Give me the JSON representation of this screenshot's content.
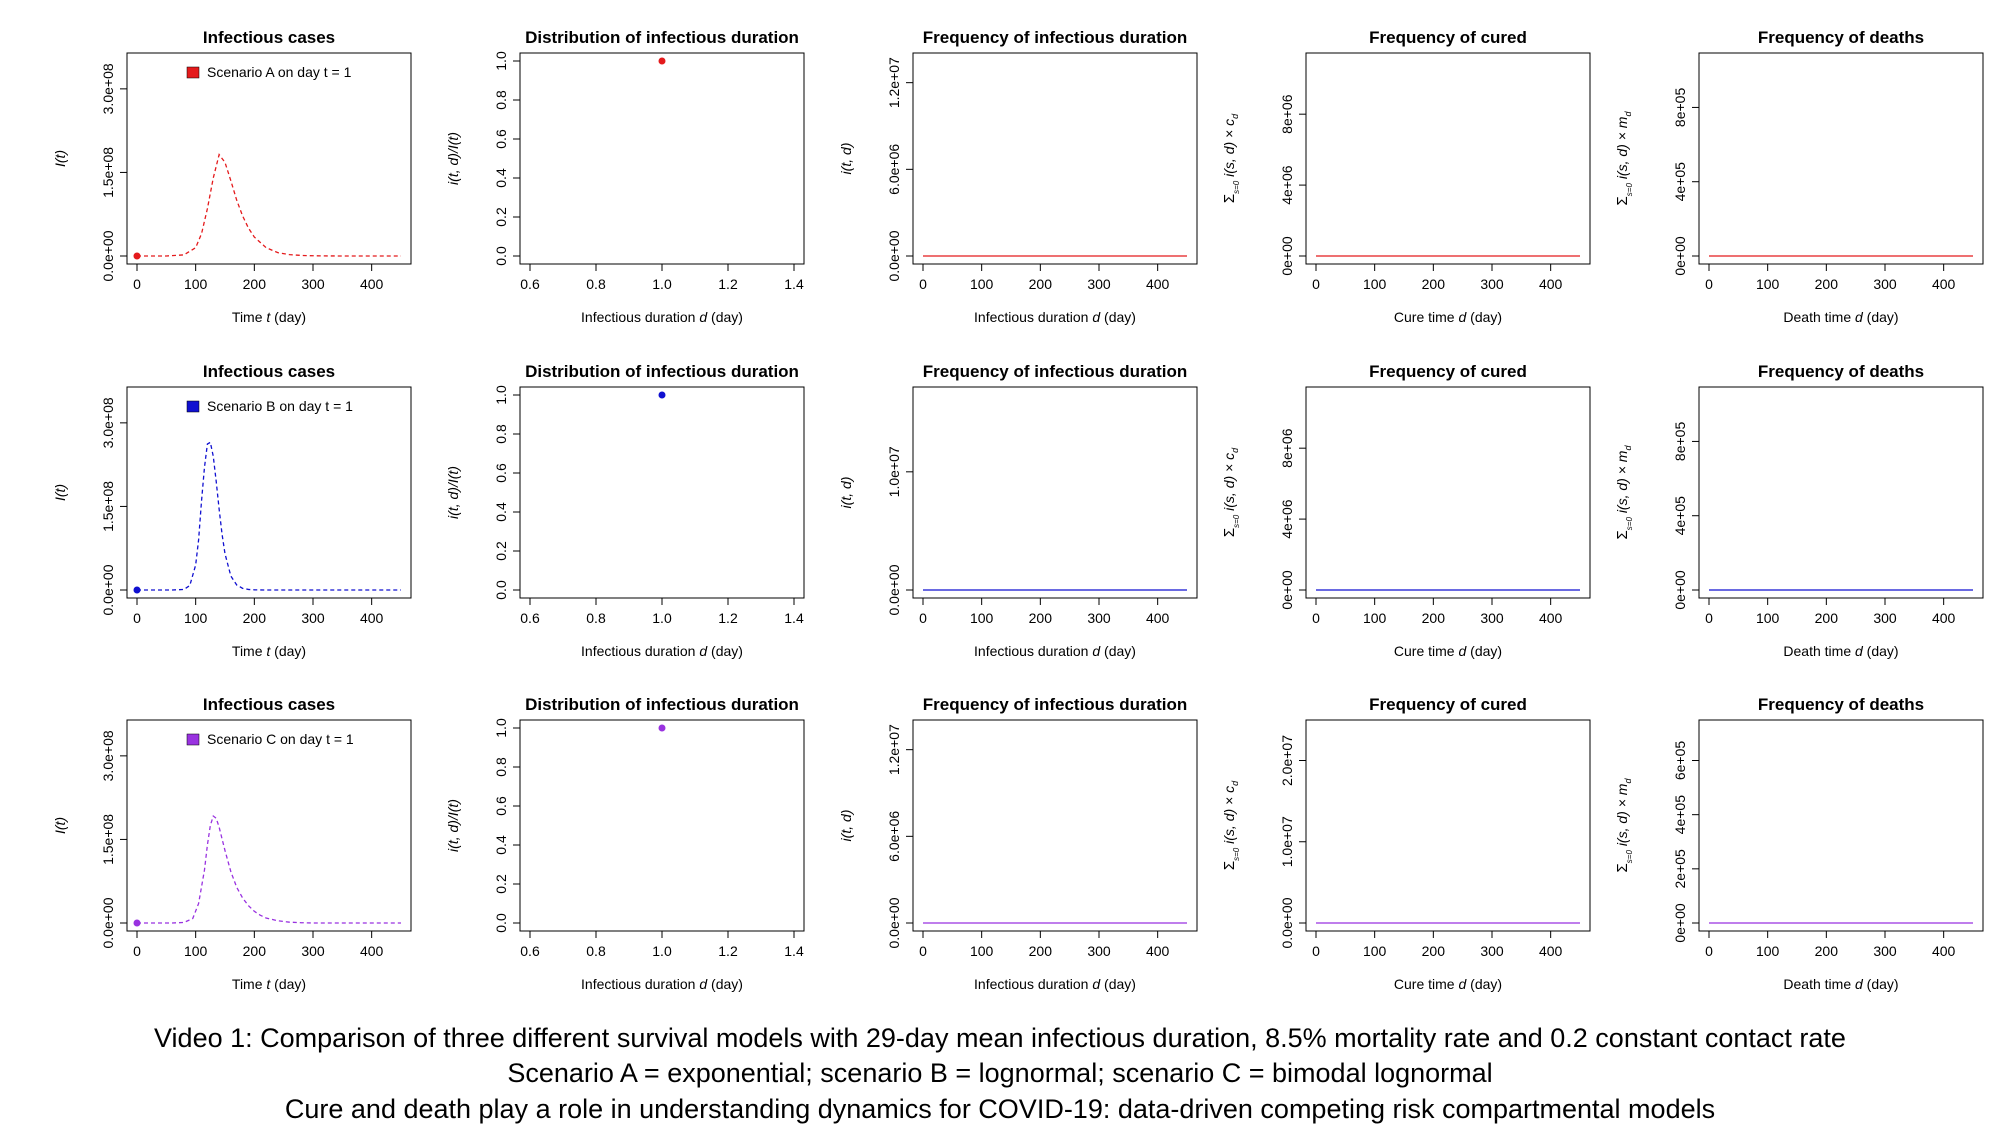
{
  "captions": {
    "line1": "Video 1: Comparison of three different survival models with 29-day mean infectious duration, 8.5% mortality rate and 0.2 constant contact rate",
    "line2": "Scenario A = exponential; scenario B = lognormal; scenario C = bimodal lognormal",
    "line3": "Cure and death play a role in understanding dynamics for COVID-19: data-driven competing risk compartmental models"
  },
  "colors": {
    "A": "#e41a1c",
    "B": "#1010d0",
    "C": "#9932e0"
  },
  "chart_data": [
    {
      "id": "A-infectious",
      "type": "line",
      "title": "Infectious cases",
      "xlabel": "Time t (day)",
      "ylabel": "I(t)",
      "xlim": [
        0,
        450
      ],
      "ylim": [
        0,
        350000000
      ],
      "xticks": [
        "0",
        "100",
        "200",
        "300",
        "400"
      ],
      "xtick_values": [
        0,
        100,
        200,
        300,
        400
      ],
      "yticks": [
        "0.0e+00",
        "1.5e+08",
        "3.0e+08"
      ],
      "ytick_values": [
        0,
        150000000,
        300000000
      ],
      "legend": "Scenario A on day t =  1",
      "legend_placement": "top-left",
      "series": [
        {
          "name": "Scenario A",
          "color": "#e41a1c",
          "style": "dashed",
          "x": [
            0,
            50,
            80,
            100,
            110,
            120,
            130,
            140,
            150,
            160,
            170,
            180,
            190,
            200,
            220,
            240,
            260,
            280,
            300,
            330,
            360,
            400,
            450
          ],
          "y": [
            0,
            0,
            2000000,
            15000000,
            40000000,
            85000000,
            140000000,
            182000000,
            168000000,
            135000000,
            100000000,
            72000000,
            50000000,
            34000000,
            15000000,
            6000000,
            2500000,
            1000000,
            400000,
            100000,
            0,
            0,
            0
          ]
        }
      ],
      "markers": [
        {
          "x": 0,
          "y": 0,
          "color": "#e41a1c"
        }
      ]
    },
    {
      "id": "A-distribution",
      "type": "scatter",
      "title": "Distribution of infectious duration",
      "xlabel": "Infectious duration d (day)",
      "ylabel": "i(t, d)/I(t)",
      "xlim": [
        0.6,
        1.4
      ],
      "ylim": [
        0,
        1
      ],
      "xticks": [
        "0.6",
        "0.8",
        "1.0",
        "1.2",
        "1.4"
      ],
      "xtick_values": [
        0.6,
        0.8,
        1.0,
        1.2,
        1.4
      ],
      "yticks": [
        "0.0",
        "0.2",
        "0.4",
        "0.6",
        "0.8",
        "1.0"
      ],
      "ytick_values": [
        0,
        0.2,
        0.4,
        0.6,
        0.8,
        1.0
      ],
      "markers": [
        {
          "x": 1.0,
          "y": 1.0,
          "color": "#e41a1c"
        }
      ]
    },
    {
      "id": "A-frequency-duration",
      "type": "line",
      "title": "Frequency of infectious duration",
      "xlabel": "Infectious duration d (day)",
      "ylabel": "i(t, d)",
      "xlim": [
        0,
        450
      ],
      "ylim": [
        0,
        13500000
      ],
      "xticks": [
        "0",
        "100",
        "200",
        "300",
        "400"
      ],
      "xtick_values": [
        0,
        100,
        200,
        300,
        400
      ],
      "yticks": [
        "0.0e+00",
        "6.0e+06",
        "1.2e+07"
      ],
      "ytick_values": [
        0,
        6000000,
        12000000
      ],
      "series": [
        {
          "name": "Scenario A",
          "color": "#e41a1c",
          "style": "solid",
          "x": [
            0,
            450
          ],
          "y": [
            0,
            0
          ]
        }
      ]
    },
    {
      "id": "A-frequency-cured",
      "type": "line",
      "title": "Frequency of cured",
      "xlabel": "Cure time d (day)",
      "ylabel": "Σ_{s=0}^{t} i(s, d) × c_d",
      "xlim": [
        0,
        450
      ],
      "ylim": [
        0,
        11000000
      ],
      "xticks": [
        "0",
        "100",
        "200",
        "300",
        "400"
      ],
      "xtick_values": [
        0,
        100,
        200,
        300,
        400
      ],
      "yticks": [
        "0e+00",
        "4e+06",
        "8e+06"
      ],
      "ytick_values": [
        0,
        4000000,
        8000000
      ],
      "series": [
        {
          "name": "Scenario A",
          "color": "#e41a1c",
          "style": "solid",
          "x": [
            0,
            450
          ],
          "y": [
            0,
            0
          ]
        }
      ]
    },
    {
      "id": "A-frequency-deaths",
      "type": "line",
      "title": "Frequency of deaths",
      "xlabel": "Death time d (day)",
      "ylabel": "Σ_{s=0}^{t} i(s, d) × m_d",
      "xlim": [
        0,
        450
      ],
      "ylim": [
        0,
        1050000
      ],
      "xticks": [
        "0",
        "100",
        "200",
        "300",
        "400"
      ],
      "xtick_values": [
        0,
        100,
        200,
        300,
        400
      ],
      "yticks": [
        "0e+00",
        "4e+05",
        "8e+05"
      ],
      "ytick_values": [
        0,
        400000,
        800000
      ],
      "series": [
        {
          "name": "Scenario A",
          "color": "#e41a1c",
          "style": "solid",
          "x": [
            0,
            450
          ],
          "y": [
            0,
            0
          ]
        }
      ]
    },
    {
      "id": "B-infectious",
      "type": "line",
      "title": "Infectious cases",
      "xlabel": "Time t (day)",
      "ylabel": "I(t)",
      "xlim": [
        0,
        450
      ],
      "ylim": [
        0,
        350000000
      ],
      "xticks": [
        "0",
        "100",
        "200",
        "300",
        "400"
      ],
      "xtick_values": [
        0,
        100,
        200,
        300,
        400
      ],
      "yticks": [
        "0.0e+00",
        "1.5e+08",
        "3.0e+08"
      ],
      "ytick_values": [
        0,
        150000000,
        300000000
      ],
      "legend": "Scenario B on day t =  1",
      "legend_placement": "top-left",
      "series": [
        {
          "name": "Scenario B",
          "color": "#1010d0",
          "style": "dashed",
          "x": [
            0,
            60,
            80,
            90,
            100,
            105,
            110,
            115,
            120,
            125,
            130,
            135,
            140,
            145,
            150,
            160,
            170,
            180,
            190,
            200,
            220,
            250,
            300,
            450
          ],
          "y": [
            0,
            0,
            1000000,
            8000000,
            45000000,
            90000000,
            160000000,
            220000000,
            262000000,
            265000000,
            240000000,
            195000000,
            145000000,
            100000000,
            65000000,
            25000000,
            9000000,
            3000000,
            1000000,
            300000,
            0,
            0,
            0,
            0
          ]
        }
      ],
      "markers": [
        {
          "x": 0,
          "y": 0,
          "color": "#1010d0"
        }
      ]
    },
    {
      "id": "B-distribution",
      "type": "scatter",
      "title": "Distribution of infectious duration",
      "xlabel": "Infectious duration d (day)",
      "ylabel": "i(t, d)/I(t)",
      "xlim": [
        0.6,
        1.4
      ],
      "ylim": [
        0,
        1
      ],
      "xticks": [
        "0.6",
        "0.8",
        "1.0",
        "1.2",
        "1.4"
      ],
      "xtick_values": [
        0.6,
        0.8,
        1.0,
        1.2,
        1.4
      ],
      "yticks": [
        "0.0",
        "0.2",
        "0.4",
        "0.6",
        "0.8",
        "1.0"
      ],
      "ytick_values": [
        0,
        0.2,
        0.4,
        0.6,
        0.8,
        1.0
      ],
      "markers": [
        {
          "x": 1.0,
          "y": 1.0,
          "color": "#1010d0"
        }
      ]
    },
    {
      "id": "B-frequency-duration",
      "type": "line",
      "title": "Frequency of infectious duration",
      "xlabel": "Infectious duration d (day)",
      "ylabel": "i(t, d)",
      "xlim": [
        0,
        450
      ],
      "ylim": [
        0,
        16500000
      ],
      "xticks": [
        "0",
        "100",
        "200",
        "300",
        "400"
      ],
      "xtick_values": [
        0,
        100,
        200,
        300,
        400
      ],
      "yticks": [
        "0.0e+00",
        "1.0e+07"
      ],
      "ytick_values": [
        0,
        10000000
      ],
      "series": [
        {
          "name": "Scenario B",
          "color": "#1010d0",
          "style": "solid",
          "x": [
            0,
            450
          ],
          "y": [
            0,
            0
          ]
        }
      ]
    },
    {
      "id": "B-frequency-cured",
      "type": "line",
      "title": "Frequency of cured",
      "xlabel": "Cure time d (day)",
      "ylabel": "Σ_{s=0}^{t} i(s, d) × c_d",
      "xlim": [
        0,
        450
      ],
      "ylim": [
        0,
        11000000
      ],
      "xticks": [
        "0",
        "100",
        "200",
        "300",
        "400"
      ],
      "xtick_values": [
        0,
        100,
        200,
        300,
        400
      ],
      "yticks": [
        "0e+00",
        "4e+06",
        "8e+06"
      ],
      "ytick_values": [
        0,
        4000000,
        8000000
      ],
      "series": [
        {
          "name": "Scenario B",
          "color": "#1010d0",
          "style": "solid",
          "x": [
            0,
            450
          ],
          "y": [
            0,
            0
          ]
        }
      ]
    },
    {
      "id": "B-frequency-deaths",
      "type": "line",
      "title": "Frequency of deaths",
      "xlabel": "Death time d (day)",
      "ylabel": "Σ_{s=0}^{t} i(s, d) × m_d",
      "xlim": [
        0,
        450
      ],
      "ylim": [
        0,
        1050000
      ],
      "xticks": [
        "0",
        "100",
        "200",
        "300",
        "400"
      ],
      "xtick_values": [
        0,
        100,
        200,
        300,
        400
      ],
      "yticks": [
        "0e+00",
        "4e+05",
        "8e+05"
      ],
      "ytick_values": [
        0,
        400000,
        800000
      ],
      "series": [
        {
          "name": "Scenario B",
          "color": "#1010d0",
          "style": "solid",
          "x": [
            0,
            450
          ],
          "y": [
            0,
            0
          ]
        }
      ]
    },
    {
      "id": "C-infectious",
      "type": "line",
      "title": "Infectious cases",
      "xlabel": "Time t (day)",
      "ylabel": "I(t)",
      "xlim": [
        0,
        450
      ],
      "ylim": [
        0,
        350000000
      ],
      "xticks": [
        "0",
        "100",
        "200",
        "300",
        "400"
      ],
      "xtick_values": [
        0,
        100,
        200,
        300,
        400
      ],
      "yticks": [
        "0.0e+00",
        "1.5e+08",
        "3.0e+08"
      ],
      "ytick_values": [
        0,
        150000000,
        300000000
      ],
      "legend": "Scenario C on day t =  1",
      "legend_placement": "top-left",
      "series": [
        {
          "name": "Scenario C",
          "color": "#9932e0",
          "style": "dashed",
          "x": [
            0,
            60,
            80,
            95,
            105,
            115,
            120,
            125,
            130,
            135,
            140,
            150,
            160,
            170,
            180,
            190,
            200,
            210,
            220,
            240,
            260,
            280,
            300,
            330,
            450
          ],
          "y": [
            0,
            0,
            1000000,
            8000000,
            35000000,
            95000000,
            140000000,
            175000000,
            192000000,
            188000000,
            172000000,
            130000000,
            92000000,
            64000000,
            45000000,
            31000000,
            21000000,
            14000000,
            9000000,
            4000000,
            1500000,
            500000,
            0,
            0,
            0
          ]
        }
      ],
      "markers": [
        {
          "x": 0,
          "y": 0,
          "color": "#9932e0"
        }
      ]
    },
    {
      "id": "C-distribution",
      "type": "scatter",
      "title": "Distribution of infectious duration",
      "xlabel": "Infectious duration d (day)",
      "ylabel": "i(t, d)/I(t)",
      "xlim": [
        0.6,
        1.4
      ],
      "ylim": [
        0,
        1
      ],
      "xticks": [
        "0.6",
        "0.8",
        "1.0",
        "1.2",
        "1.4"
      ],
      "xtick_values": [
        0.6,
        0.8,
        1.0,
        1.2,
        1.4
      ],
      "yticks": [
        "0.0",
        "0.2",
        "0.4",
        "0.6",
        "0.8",
        "1.0"
      ],
      "ytick_values": [
        0,
        0.2,
        0.4,
        0.6,
        0.8,
        1.0
      ],
      "markers": [
        {
          "x": 1.0,
          "y": 1.0,
          "color": "#9932e0"
        }
      ]
    },
    {
      "id": "C-frequency-duration",
      "type": "line",
      "title": "Frequency of infectious duration",
      "xlabel": "Infectious duration d (day)",
      "ylabel": "i(t, d)",
      "xlim": [
        0,
        450
      ],
      "ylim": [
        0,
        13500000
      ],
      "xticks": [
        "0",
        "100",
        "200",
        "300",
        "400"
      ],
      "xtick_values": [
        0,
        100,
        200,
        300,
        400
      ],
      "yticks": [
        "0.0e+00",
        "6.0e+06",
        "1.2e+07"
      ],
      "ytick_values": [
        0,
        6000000,
        12000000
      ],
      "series": [
        {
          "name": "Scenario C",
          "color": "#9932e0",
          "style": "solid",
          "x": [
            0,
            450
          ],
          "y": [
            0,
            0
          ]
        }
      ]
    },
    {
      "id": "C-frequency-cured",
      "type": "line",
      "title": "Frequency of cured",
      "xlabel": "Cure time d (day)",
      "ylabel": "Σ_{s=0}^{t} i(s, d) × c_d",
      "xlim": [
        0,
        450
      ],
      "ylim": [
        0,
        24000000
      ],
      "xticks": [
        "0",
        "100",
        "200",
        "300",
        "400"
      ],
      "xtick_values": [
        0,
        100,
        200,
        300,
        400
      ],
      "yticks": [
        "0.0e+00",
        "1.0e+07",
        "2.0e+07"
      ],
      "ytick_values": [
        0,
        10000000,
        20000000
      ],
      "series": [
        {
          "name": "Scenario C",
          "color": "#9932e0",
          "style": "solid",
          "x": [
            0,
            450
          ],
          "y": [
            0,
            0
          ]
        }
      ]
    },
    {
      "id": "C-frequency-deaths",
      "type": "line",
      "title": "Frequency of deaths",
      "xlabel": "Death time d (day)",
      "ylabel": "Σ_{s=0}^{t} i(s, d) × m_d",
      "xlim": [
        0,
        450
      ],
      "ylim": [
        0,
        720000
      ],
      "xticks": [
        "0",
        "100",
        "200",
        "300",
        "400"
      ],
      "xtick_values": [
        0,
        100,
        200,
        300,
        400
      ],
      "yticks": [
        "0e+00",
        "2e+05",
        "4e+05",
        "6e+05"
      ],
      "ytick_values": [
        0,
        200000,
        400000,
        600000
      ],
      "series": [
        {
          "name": "Scenario C",
          "color": "#9932e0",
          "style": "solid",
          "x": [
            0,
            450
          ],
          "y": [
            0,
            0
          ]
        }
      ]
    }
  ]
}
